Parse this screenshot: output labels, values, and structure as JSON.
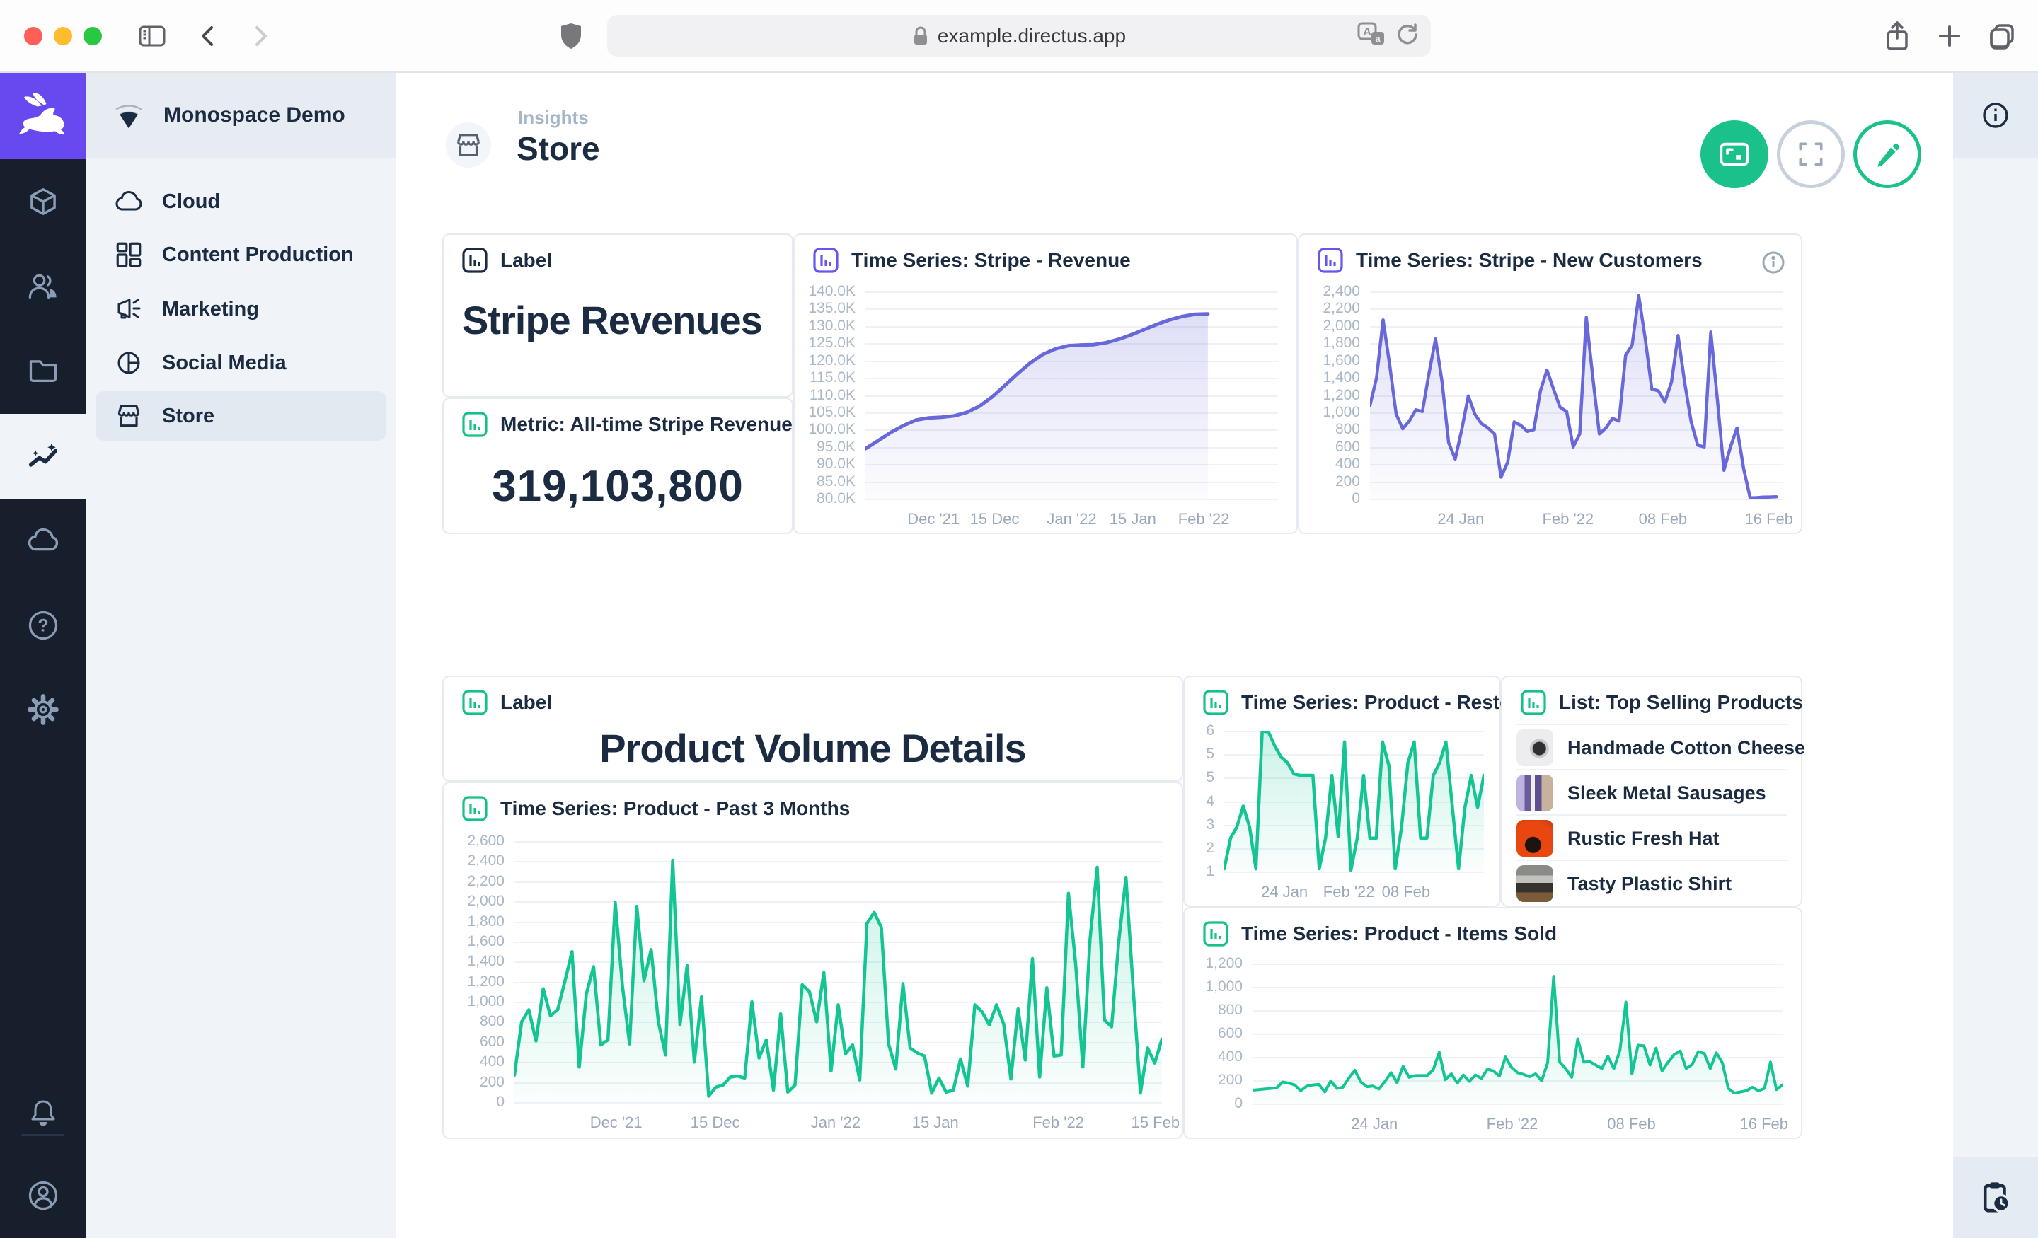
{
  "browser": {
    "url": "example.directus.app",
    "icons": [
      "shield-icon",
      "lock-icon",
      "translate-icon",
      "reload-icon",
      "sidebar-toggle-icon",
      "back-icon",
      "forward-icon",
      "share-icon",
      "new-tab-icon",
      "tabs-icon"
    ]
  },
  "colors": {
    "brand_purple": "#6849F0",
    "accent_green": "#1AC18B",
    "chart_purple": "#6968DB",
    "chart_green": "#12C592",
    "module_bar": "#161F2B"
  },
  "module_bar": {
    "items": [
      "directus-logo",
      "content-module",
      "users-module",
      "files-module",
      "insights-module",
      "cloud-module",
      "help-module",
      "settings-module",
      "notifications",
      "user-avatar"
    ],
    "active": "insights-module"
  },
  "sidebar": {
    "project": "Monospace Demo",
    "items": [
      {
        "label": "Cloud",
        "icon": "cloud-icon",
        "active": false
      },
      {
        "label": "Content Production",
        "icon": "dashboard-icon",
        "active": false
      },
      {
        "label": "Marketing",
        "icon": "megaphone-icon",
        "active": false
      },
      {
        "label": "Social Media",
        "icon": "pie-chart-icon",
        "active": false
      },
      {
        "label": "Store",
        "icon": "storefront-icon",
        "active": true
      }
    ]
  },
  "header": {
    "breadcrumb": "Insights",
    "title": "Store",
    "buttons": [
      "present-button",
      "fullscreen-button",
      "edit-button"
    ]
  },
  "panels": {
    "label1": {
      "title": "Label",
      "text": "Stripe Revenues"
    },
    "metric": {
      "title": "Metric: All-time Stripe Revenues",
      "value": "319,103,800"
    },
    "ts_revenue": {
      "title": "Time Series: Stripe - Revenue"
    },
    "ts_customers": {
      "title": "Time Series: Stripe - New Customers"
    },
    "label2": {
      "title": "Label",
      "text": "Product Volume Details"
    },
    "ts_past3": {
      "title": "Time Series: Product - Past 3 Months"
    },
    "ts_restocks": {
      "title": "Time Series: Product - Restocks"
    },
    "list": {
      "title": "List: Top Selling Products",
      "items": [
        {
          "name": "Handmade Cotton Cheese"
        },
        {
          "name": "Sleek Metal Sausages"
        },
        {
          "name": "Rustic Fresh Hat"
        },
        {
          "name": "Tasty Plastic Shirt"
        }
      ]
    },
    "ts_items": {
      "title": "Time Series: Product - Items Sold"
    }
  },
  "chart_data": {
    "revenue": {
      "type": "area",
      "title": "Time Series: Stripe - Revenue",
      "color": "#6968DB",
      "stroke": 5,
      "span": 0.83,
      "gutter": 84,
      "y_min": 80000,
      "y_max": 140000,
      "y_ticks": [
        "140.0K",
        "135.0K",
        "130.0K",
        "125.0K",
        "120.0K",
        "115.0K",
        "110.0K",
        "105.0K",
        "100.0K",
        "95.0K",
        "90.0K",
        "85.0K",
        "80.0K"
      ],
      "x_ticks": [
        {
          "l": "Dec '21",
          "p": 0.165
        },
        {
          "l": "15 Dec",
          "p": 0.313
        },
        {
          "l": "Jan '22",
          "p": 0.5
        },
        {
          "l": "15 Jan",
          "p": 0.648
        },
        {
          "l": "Feb '22",
          "p": 0.82
        }
      ],
      "values": [
        94500,
        96800,
        99200,
        101200,
        102800,
        103400,
        103600,
        104000,
        105000,
        106800,
        109500,
        112800,
        116200,
        119300,
        121800,
        123400,
        124300,
        124500,
        124600,
        125200,
        126200,
        127500,
        129000,
        130500,
        131800,
        132800,
        133400,
        133500
      ]
    },
    "customers": {
      "type": "area",
      "title": "Time Series: Stripe - New Customers",
      "color": "#6968DB",
      "stroke": 4.5,
      "span": 0.985,
      "gutter": 84,
      "y_min": 0,
      "y_max": 2400,
      "y_ticks": [
        "2,400",
        "2,200",
        "2,000",
        "1,800",
        "1,600",
        "1,400",
        "1,200",
        "1,000",
        "800",
        "600",
        "400",
        "200",
        "0"
      ],
      "x_ticks": [
        {
          "l": "24 Jan",
          "p": 0.22
        },
        {
          "l": "Feb '22",
          "p": 0.48
        },
        {
          "l": "08 Feb",
          "p": 0.71
        },
        {
          "l": "16 Feb",
          "p": 0.967
        }
      ],
      "values": [
        1080,
        1400,
        2070,
        1550,
        980,
        810,
        900,
        1030,
        1010,
        1450,
        1850,
        1350,
        650,
        460,
        800,
        1190,
        980,
        870,
        820,
        750,
        250,
        420,
        890,
        850,
        780,
        800,
        1250,
        1490,
        1270,
        1060,
        1010,
        600,
        750,
        2100,
        1400,
        750,
        820,
        930,
        900,
        1660,
        1780,
        2350,
        1850,
        1270,
        1250,
        1120,
        1350,
        1890,
        1350,
        890,
        620,
        600,
        1930,
        1150,
        330,
        600,
        820,
        350,
        10,
        12,
        18,
        20,
        22
      ]
    },
    "past3": {
      "type": "area",
      "title": "Time Series: Product - Past 3 Months",
      "color": "#12C592",
      "stroke": 4.5,
      "span": 1,
      "gutter": 84,
      "y_min": 0,
      "y_max": 2600,
      "y_ticks": [
        "2,600",
        "2,400",
        "2,200",
        "2,000",
        "1,800",
        "1,600",
        "1,400",
        "1,200",
        "1,000",
        "800",
        "600",
        "400",
        "200",
        "0"
      ],
      "x_ticks": [
        {
          "l": "Dec '21",
          "p": 0.157
        },
        {
          "l": "15 Dec",
          "p": 0.31
        },
        {
          "l": "Jan '22",
          "p": 0.496
        },
        {
          "l": "15 Jan",
          "p": 0.65
        },
        {
          "l": "Feb '22",
          "p": 0.84
        },
        {
          "l": "15 Feb",
          "p": 0.99
        }
      ],
      "values": [
        270,
        800,
        920,
        610,
        1130,
        860,
        920,
        1200,
        1500,
        350,
        1080,
        1350,
        570,
        620,
        1990,
        1160,
        580,
        1950,
        1210,
        1520,
        800,
        470,
        2410,
        770,
        1360,
        400,
        1050,
        60,
        150,
        170,
        250,
        260,
        240,
        1000,
        440,
        620,
        120,
        880,
        100,
        170,
        1170,
        1100,
        800,
        1290,
        310,
        970,
        480,
        570,
        220,
        1780,
        1890,
        1740,
        580,
        330,
        1180,
        540,
        490,
        460,
        90,
        240,
        100,
        120,
        430,
        160,
        970,
        900,
        770,
        970,
        780,
        230,
        930,
        420,
        1430,
        250,
        1140,
        460,
        470,
        2080,
        1380,
        350,
        1620,
        2340,
        820,
        750,
        1600,
        2240,
        1130,
        90,
        540,
        390,
        630
      ]
    },
    "restocks": {
      "type": "area",
      "title": "Time Series: Product - Restocks",
      "color": "#12C592",
      "stroke": 4.5,
      "span": 1,
      "gutter": 44,
      "y_min": 1,
      "y_max": 6.05,
      "y_ticks": [
        "6",
        "5",
        "5",
        "4",
        "3",
        "2",
        "1"
      ],
      "x_ticks": [
        {
          "l": "24 Jan",
          "p": 0.232
        },
        {
          "l": "Feb '22",
          "p": 0.48
        },
        {
          "l": "08 Feb",
          "p": 0.7
        }
      ],
      "values": [
        1.1,
        2.2,
        2.6,
        3.35,
        2.6,
        1.1,
        6.05,
        6.0,
        5.5,
        5.1,
        4.9,
        4.5,
        4.45,
        4.45,
        4.45,
        1.1,
        2.2,
        4.45,
        2.25,
        5.65,
        1.05,
        2.2,
        4.45,
        2.2,
        2.2,
        5.65,
        4.8,
        1.1,
        2.6,
        4.9,
        5.65,
        2.2,
        2.2,
        4.45,
        4.9,
        5.65,
        3.35,
        1.1,
        3.3,
        4.45,
        3.3,
        4.45
      ]
    },
    "items": {
      "type": "area",
      "title": "Time Series: Product - Items Sold",
      "color": "#12C592",
      "stroke": 4,
      "span": 1,
      "gutter": 80,
      "y_min": 0,
      "y_max": 1200,
      "y_ticks": [
        "1,200",
        "1,000",
        "800",
        "600",
        "400",
        "200",
        "0"
      ],
      "x_ticks": [
        {
          "l": "24 Jan",
          "p": 0.23
        },
        {
          "l": "Feb '22",
          "p": 0.49
        },
        {
          "l": "08 Feb",
          "p": 0.715
        },
        {
          "l": "16 Feb",
          "p": 0.965
        }
      ],
      "values": [
        115,
        120,
        125,
        130,
        135,
        185,
        175,
        160,
        110,
        150,
        160,
        165,
        100,
        195,
        130,
        140,
        220,
        285,
        185,
        145,
        150,
        125,
        190,
        265,
        180,
        320,
        225,
        240,
        240,
        240,
        290,
        440,
        205,
        255,
        175,
        245,
        190,
        245,
        215,
        295,
        280,
        235,
        400,
        310,
        265,
        250,
        230,
        255,
        195,
        350,
        1090,
        355,
        300,
        225,
        555,
        355,
        360,
        330,
        300,
        405,
        300,
        455,
        870,
        255,
        500,
        495,
        330,
        475,
        280,
        355,
        420,
        450,
        300,
        335,
        445,
        430,
        300,
        435,
        350,
        130,
        90,
        100,
        110,
        140,
        110,
        130,
        355,
        120,
        160
      ]
    }
  }
}
